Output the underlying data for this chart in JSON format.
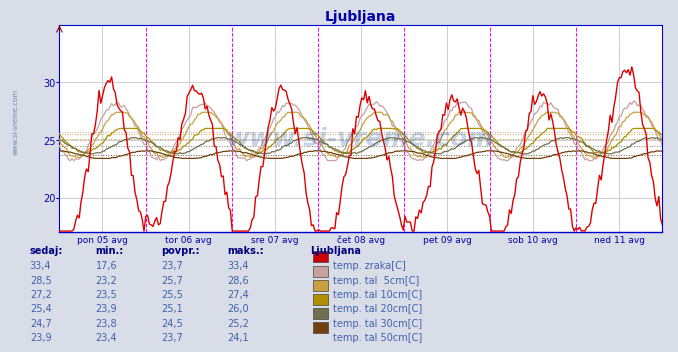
{
  "title": "Ljubljana",
  "title_color": "#0000aa",
  "title_fontsize": 10,
  "bg_color": "#d8dde8",
  "plot_bg_color": "#ffffff",
  "grid_color": "#c8c8d8",
  "axis_color": "#0000cc",
  "tick_color": "#0000aa",
  "ylim_low": 17,
  "ylim_high": 35,
  "yticks": [
    20,
    25,
    30
  ],
  "n_points": 336,
  "days": [
    "pon 05 avg",
    "tor 06 avg",
    "sre 07 avg",
    "čet 08 avg",
    "pet 09 avg",
    "sob 10 avg",
    "ned 11 avg"
  ],
  "line_colors": [
    "#dd0000",
    "#c8a0a0",
    "#c8a040",
    "#b09000",
    "#707050",
    "#704010"
  ],
  "legend_labels": [
    "temp. zraka[C]",
    "temp. tal  5cm[C]",
    "temp. tal 10cm[C]",
    "temp. tal 20cm[C]",
    "temp. tal 30cm[C]",
    "temp. tal 50cm[C]"
  ],
  "legend_colors": [
    "#cc0000",
    "#c8a0a0",
    "#c8a040",
    "#b09000",
    "#707050",
    "#704010"
  ],
  "table_headers": [
    "sedaj:",
    "min.:",
    "povpr.:",
    "maks.:",
    "Ljubljana"
  ],
  "table_data": [
    [
      "33,4",
      "17,6",
      "23,7",
      "33,4"
    ],
    [
      "28,5",
      "23,2",
      "25,7",
      "28,6"
    ],
    [
      "27,2",
      "23,5",
      "25,5",
      "27,4"
    ],
    [
      "25,4",
      "23,9",
      "25,1",
      "26,0"
    ],
    [
      "24,7",
      "23,8",
      "24,5",
      "25,2"
    ],
    [
      "23,9",
      "23,4",
      "23,7",
      "24,1"
    ]
  ],
  "watermark": "www.si-vreme.com",
  "watermark_color": "#2050a0",
  "watermark_alpha": 0.25,
  "avg_vals": [
    25.7,
    25.5,
    25.1,
    24.5,
    23.7
  ]
}
